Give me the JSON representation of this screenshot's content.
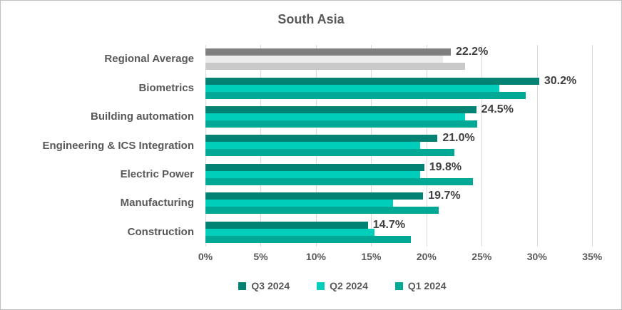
{
  "chart_data": {
    "type": "bar",
    "orientation": "horizontal",
    "title": "South Asia",
    "categories": [
      "Regional Average",
      "Biometrics",
      "Building automation",
      "Engineering & ICS Integration",
      "Electric Power",
      "Manufacturing",
      "Construction"
    ],
    "series": [
      {
        "name": "Q3 2024",
        "color": "#028273",
        "values": [
          22.2,
          30.2,
          24.5,
          21.0,
          19.8,
          19.7,
          14.7
        ]
      },
      {
        "name": "Q2 2024",
        "color": "#00CDBA",
        "values": [
          21.5,
          26.6,
          23.5,
          19.4,
          19.4,
          17.0,
          15.3
        ]
      },
      {
        "name": "Q1 2024",
        "color": "#00A995",
        "values": [
          23.5,
          29.0,
          24.6,
          22.5,
          24.2,
          21.1,
          18.6
        ]
      }
    ],
    "special_category_colors": {
      "Regional Average": [
        "#7F7F7F",
        "#ECECEC",
        "#C9C9C9"
      ]
    },
    "data_labels": {
      "on_series": "Q3 2024",
      "values": [
        "22.2%",
        "30.2%",
        "24.5%",
        "21.0%",
        "19.8%",
        "19.7%",
        "14.7%"
      ]
    },
    "x_axis": {
      "min": 0,
      "max": 35,
      "plot_max_render": 35.5,
      "tick_values": [
        0,
        5,
        10,
        15,
        20,
        25,
        30,
        35
      ],
      "tick_labels": [
        "0%",
        "5%",
        "10%",
        "15%",
        "20%",
        "25%",
        "30%",
        "35%"
      ],
      "grid": true
    },
    "legend": {
      "position": "bottom",
      "entries": [
        "Q3 2024",
        "Q2 2024",
        "Q1 2024"
      ]
    },
    "palette": {
      "grid": "#D9D9D9",
      "frame_border": "#BFBFBF",
      "title_text": "#595959",
      "axis_text": "#595959",
      "category_text": "#595959",
      "data_label_text": "#3F3F3F"
    }
  }
}
